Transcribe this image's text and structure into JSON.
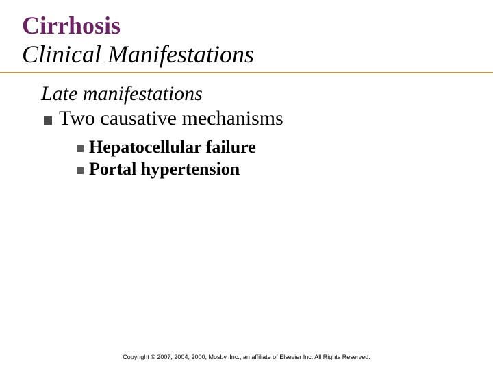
{
  "title": {
    "line1": "Cirrhosis",
    "line2": "Clinical Manifestations",
    "line1_color": "#6b2463",
    "line2_color": "#000000",
    "fontsize": 36
  },
  "rule": {
    "top_color": "#c09850",
    "bottom_color": "#d9d0b8"
  },
  "body": {
    "subhead": "Late manifestations",
    "subhead_fontsize": 30,
    "level1": {
      "text": "Two causative mechanisms",
      "bullet_color": "#4a4a4a",
      "fontsize": 30
    },
    "level2": [
      {
        "text": "Hepatocellular failure"
      },
      {
        "text": "Portal hypertension"
      }
    ],
    "level2_bullet_color": "#5a5a5a",
    "level2_fontsize": 26
  },
  "footer": {
    "text": "Copyright © 2007, 2004, 2000, Mosby, Inc., an affiliate of Elsevier Inc. All Rights Reserved.",
    "fontsize": 9
  },
  "background_color": "#ffffff"
}
